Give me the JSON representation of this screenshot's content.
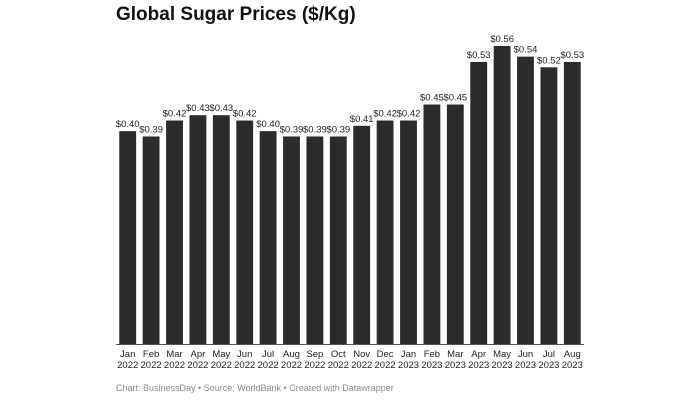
{
  "chart_data": {
    "type": "bar",
    "title": "Global Sugar Prices ($/Kg)",
    "categories": [
      "Jan 2022",
      "Feb 2022",
      "Mar 2022",
      "Apr 2022",
      "May 2022",
      "Jun 2022",
      "Jul 2022",
      "Aug 2022",
      "Sep 2022",
      "Oct 2022",
      "Nov 2022",
      "Dec 2022",
      "Jan 2023",
      "Feb 2023",
      "Mar 2023",
      "Apr 2023",
      "May 2023",
      "Jun 2023",
      "Jul 2023",
      "Aug 2023"
    ],
    "values": [
      0.4,
      0.39,
      0.42,
      0.43,
      0.43,
      0.42,
      0.4,
      0.39,
      0.39,
      0.39,
      0.41,
      0.42,
      0.42,
      0.45,
      0.45,
      0.53,
      0.56,
      0.54,
      0.52,
      0.53
    ],
    "data_label_prefix": "$",
    "xlabel": "",
    "ylabel": "",
    "ylim": [
      0,
      0.56
    ],
    "grid": false,
    "bar_color": "#2b2b2b",
    "footer": "Chart: BusinessDay • Source: WorldBank  • Created with Datawrapper"
  }
}
